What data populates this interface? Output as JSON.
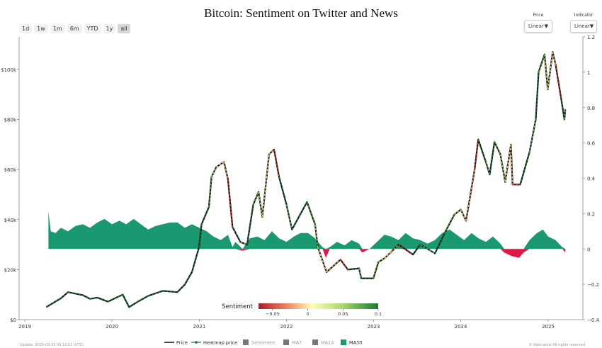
{
  "title": "Bitcoin: Sentiment on Twitter and News",
  "range_buttons": [
    "1d",
    "1w",
    "1m",
    "6m",
    "YTD",
    "1y",
    "all"
  ],
  "active_range": "all",
  "price_control": {
    "label": "Price",
    "value": "Linear"
  },
  "indicator_control": {
    "label": "Indicator",
    "value": "Linear"
  },
  "footer": {
    "update": "Update: 2025-03-15 00:12:01 (UTC)",
    "copyright": "© Alphractal All rights reserved"
  },
  "colors": {
    "price": "#111111",
    "sentiment_pos": "#1a9870",
    "sentiment_neg": "#e0184a",
    "heatmap_low": "#b2182b",
    "heatmap_mid": "#ffffbf",
    "heatmap_high": "#1a7837"
  },
  "chart_data": {
    "type": "line",
    "title": "Bitcoin: Sentiment on Twitter and News",
    "x_axis": {
      "type": "date",
      "tick_labels": [
        "2019",
        "2020",
        "2021",
        "2022",
        "2023",
        "2024",
        "2025"
      ]
    },
    "y_left": {
      "range": [
        0,
        113000
      ],
      "tick_labels": [
        "$0",
        "$20k",
        "$40k",
        "$60k",
        "$80k",
        "$100k"
      ],
      "tick_values": [
        0,
        20000,
        40000,
        60000,
        80000,
        100000
      ]
    },
    "y_right": {
      "range": [
        -0.4,
        1.2
      ],
      "tick_labels": [
        "−0.4",
        "−0.2",
        "0",
        "0.2",
        "0.4",
        "0.6",
        "0.8",
        "1",
        "1.2"
      ],
      "tick_values": [
        -0.4,
        -0.2,
        0,
        0.2,
        0.4,
        0.6,
        0.8,
        1.0,
        1.2
      ]
    },
    "grid": false,
    "legend_position": "bottom",
    "legend": [
      "Price",
      "Heatmap price",
      "Sentiment",
      "MA7",
      "MA14",
      "MA30"
    ],
    "colorbar": {
      "label": "Sentiment",
      "tick_labels": [
        "−0.05",
        "0",
        "0.05",
        "0.1"
      ],
      "tick_values": [
        -0.05,
        0,
        0.05,
        0.1
      ],
      "range": [
        -0.07,
        0.1
      ]
    },
    "series": [
      {
        "name": "Price",
        "points": [
          [
            "2019-04-01",
            5000
          ],
          [
            "2019-06-01",
            8500
          ],
          [
            "2019-07-01",
            11000
          ],
          [
            "2019-09-01",
            9800
          ],
          [
            "2019-10-01",
            8300
          ],
          [
            "2019-11-01",
            8800
          ],
          [
            "2019-12-15",
            7200
          ],
          [
            "2020-02-15",
            10000
          ],
          [
            "2020-03-13",
            5000
          ],
          [
            "2020-04-15",
            7000
          ],
          [
            "2020-06-01",
            9500
          ],
          [
            "2020-08-01",
            11500
          ],
          [
            "2020-10-01",
            11000
          ],
          [
            "2020-11-01",
            14000
          ],
          [
            "2020-12-01",
            19000
          ],
          [
            "2020-12-31",
            29000
          ],
          [
            "2021-01-10",
            38000
          ],
          [
            "2021-02-10",
            45000
          ],
          [
            "2021-02-21",
            57000
          ],
          [
            "2021-03-13",
            61000
          ],
          [
            "2021-04-14",
            63000
          ],
          [
            "2021-05-01",
            56000
          ],
          [
            "2021-05-20",
            37000
          ],
          [
            "2021-06-22",
            31000
          ],
          [
            "2021-07-20",
            30000
          ],
          [
            "2021-08-15",
            46000
          ],
          [
            "2021-09-06",
            51000
          ],
          [
            "2021-09-22",
            41000
          ],
          [
            "2021-10-20",
            66000
          ],
          [
            "2021-11-10",
            68000
          ],
          [
            "2021-12-01",
            57000
          ],
          [
            "2022-01-01",
            46000
          ],
          [
            "2022-01-24",
            36000
          ],
          [
            "2022-03-28",
            47000
          ],
          [
            "2022-05-01",
            38000
          ],
          [
            "2022-05-12",
            29000
          ],
          [
            "2022-06-18",
            19000
          ],
          [
            "2022-08-15",
            24000
          ],
          [
            "2022-09-15",
            20000
          ],
          [
            "2022-11-01",
            20500
          ],
          [
            "2022-11-10",
            16500
          ],
          [
            "2022-12-31",
            16500
          ],
          [
            "2023-01-21",
            23000
          ],
          [
            "2023-02-15",
            24500
          ],
          [
            "2023-03-15",
            27000
          ],
          [
            "2023-04-15",
            30000
          ],
          [
            "2023-06-15",
            26000
          ],
          [
            "2023-07-15",
            30000
          ],
          [
            "2023-09-15",
            26500
          ],
          [
            "2023-10-25",
            34500
          ],
          [
            "2023-12-05",
            42000
          ],
          [
            "2024-01-01",
            44000
          ],
          [
            "2024-01-23",
            39500
          ],
          [
            "2024-02-28",
            60000
          ],
          [
            "2024-03-14",
            72000
          ],
          [
            "2024-04-15",
            63000
          ],
          [
            "2024-05-01",
            58000
          ],
          [
            "2024-05-21",
            71000
          ],
          [
            "2024-06-15",
            66000
          ],
          [
            "2024-07-05",
            55000
          ],
          [
            "2024-07-29",
            70000
          ],
          [
            "2024-08-05",
            54000
          ],
          [
            "2024-09-06",
            54000
          ],
          [
            "2024-10-15",
            67000
          ],
          [
            "2024-11-10",
            80000
          ],
          [
            "2024-11-22",
            99000
          ],
          [
            "2024-12-17",
            106000
          ],
          [
            "2024-12-30",
            92000
          ],
          [
            "2025-01-20",
            107000
          ],
          [
            "2025-02-01",
            102000
          ],
          [
            "2025-02-25",
            88000
          ],
          [
            "2025-03-10",
            80000
          ],
          [
            "2025-03-14",
            84000
          ]
        ]
      },
      {
        "name": "MA30",
        "points": [
          [
            "2019-04-10",
            0.21
          ],
          [
            "2019-04-20",
            0.1
          ],
          [
            "2019-05-10",
            0.09
          ],
          [
            "2019-06-01",
            0.12
          ],
          [
            "2019-07-01",
            0.1
          ],
          [
            "2019-08-01",
            0.13
          ],
          [
            "2019-09-01",
            0.14
          ],
          [
            "2019-10-01",
            0.12
          ],
          [
            "2019-11-01",
            0.15
          ],
          [
            "2019-12-01",
            0.17
          ],
          [
            "2020-01-01",
            0.14
          ],
          [
            "2020-02-01",
            0.16
          ],
          [
            "2020-03-01",
            0.14
          ],
          [
            "2020-04-01",
            0.17
          ],
          [
            "2020-05-01",
            0.14
          ],
          [
            "2020-06-01",
            0.11
          ],
          [
            "2020-07-01",
            0.13
          ],
          [
            "2020-08-01",
            0.14
          ],
          [
            "2020-09-01",
            0.15
          ],
          [
            "2020-10-01",
            0.15
          ],
          [
            "2020-11-01",
            0.12
          ],
          [
            "2020-12-01",
            0.14
          ],
          [
            "2021-01-01",
            0.12
          ],
          [
            "2021-02-01",
            0.1
          ],
          [
            "2021-03-01",
            0.07
          ],
          [
            "2021-04-01",
            0.05
          ],
          [
            "2021-05-01",
            0.08
          ],
          [
            "2021-05-20",
            0.01
          ],
          [
            "2021-06-01",
            0.04
          ],
          [
            "2021-07-01",
            -0.01
          ],
          [
            "2021-08-01",
            0.06
          ],
          [
            "2021-09-01",
            0.07
          ],
          [
            "2021-10-01",
            0.05
          ],
          [
            "2021-11-01",
            0.1
          ],
          [
            "2021-12-01",
            0.06
          ],
          [
            "2022-01-01",
            0.04
          ],
          [
            "2022-02-01",
            0.07
          ],
          [
            "2022-03-01",
            0.09
          ],
          [
            "2022-04-01",
            0.09
          ],
          [
            "2022-05-01",
            0.06
          ],
          [
            "2022-06-01",
            0.01
          ],
          [
            "2022-06-15",
            -0.05
          ],
          [
            "2022-07-01",
            0.01
          ],
          [
            "2022-08-01",
            0.04
          ],
          [
            "2022-09-01",
            0.02
          ],
          [
            "2022-10-01",
            0.05
          ],
          [
            "2022-11-01",
            0.03
          ],
          [
            "2022-11-15",
            -0.02
          ],
          [
            "2022-12-15",
            0.0
          ],
          [
            "2023-01-15",
            0.04
          ],
          [
            "2023-02-15",
            0.08
          ],
          [
            "2023-03-15",
            0.07
          ],
          [
            "2023-04-15",
            0.05
          ],
          [
            "2023-05-15",
            0.09
          ],
          [
            "2023-06-15",
            0.06
          ],
          [
            "2023-07-15",
            0.05
          ],
          [
            "2023-08-15",
            0.03
          ],
          [
            "2023-09-15",
            0.05
          ],
          [
            "2023-10-15",
            0.09
          ],
          [
            "2023-11-15",
            0.11
          ],
          [
            "2023-12-15",
            0.08
          ],
          [
            "2024-01-15",
            0.05
          ],
          [
            "2024-02-15",
            0.09
          ],
          [
            "2024-03-15",
            0.06
          ],
          [
            "2024-04-15",
            0.04
          ],
          [
            "2024-05-15",
            0.07
          ],
          [
            "2024-06-15",
            0.03
          ],
          [
            "2024-07-01",
            -0.02
          ],
          [
            "2024-08-01",
            -0.04
          ],
          [
            "2024-09-01",
            -0.05
          ],
          [
            "2024-09-20",
            -0.02
          ],
          [
            "2024-10-15",
            0.05
          ],
          [
            "2024-11-15",
            0.09
          ],
          [
            "2024-12-10",
            0.11
          ],
          [
            "2025-01-01",
            0.07
          ],
          [
            "2025-02-01",
            0.05
          ],
          [
            "2025-03-01",
            0.01
          ],
          [
            "2025-03-14",
            -0.02
          ]
        ]
      }
    ]
  }
}
